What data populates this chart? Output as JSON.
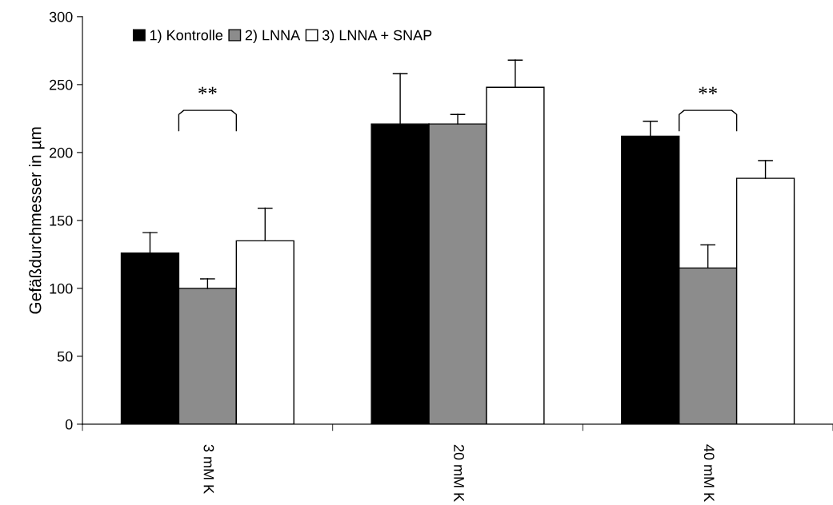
{
  "chart_data": {
    "type": "bar",
    "ylabel": "Gefäßdurchmesser in µm",
    "categories": [
      "3 mM K",
      "20 mM K",
      "40 mM K"
    ],
    "series": [
      {
        "name": "1) Kontrolle",
        "color": "#000000",
        "values": [
          126,
          221,
          212
        ],
        "errors": [
          [
            126,
            141
          ],
          [
            221,
            258
          ],
          [
            212,
            223
          ]
        ]
      },
      {
        "name": "2) LNNA",
        "color": "#8c8c8c",
        "values": [
          100,
          221,
          115
        ],
        "errors": [
          [
            100,
            107
          ],
          [
            221,
            228
          ],
          [
            115,
            132
          ]
        ]
      },
      {
        "name": "3) LNNA + SNAP",
        "color": "#ffffff",
        "values": [
          135,
          248,
          181
        ],
        "errors": [
          [
            135,
            159
          ],
          [
            248,
            268
          ],
          [
            181,
            194
          ]
        ]
      }
    ],
    "ylim": [
      0,
      300
    ],
    "yticks": [
      0,
      50,
      100,
      150,
      200,
      250,
      300
    ],
    "grid": false,
    "legend": "top left",
    "annotations": [
      "**",
      "**"
    ]
  }
}
